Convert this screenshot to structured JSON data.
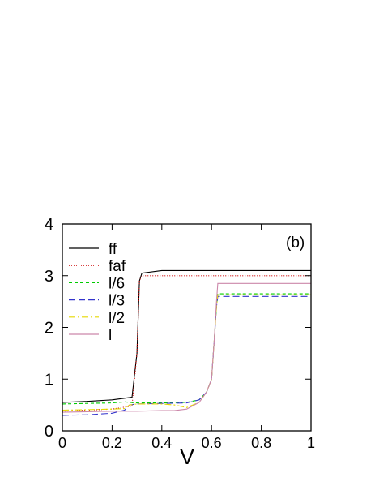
{
  "chart_data": {
    "type": "line",
    "panel_label": "(b)",
    "xlabel": "V",
    "ylabel": "",
    "xlim": [
      0,
      1
    ],
    "ylim": [
      0,
      4
    ],
    "x_ticks": [
      0,
      0.2,
      0.4,
      0.6,
      0.8,
      1
    ],
    "x_tick_labels": [
      "0",
      "0.2",
      "0.4",
      "0.6",
      "0.8",
      "1"
    ],
    "y_ticks": [
      0,
      1,
      2,
      3,
      4
    ],
    "y_tick_labels": [
      "0",
      "1",
      "2",
      "3",
      "4"
    ],
    "grid": false,
    "legend_position": "top-left",
    "series": [
      {
        "name": "ff",
        "color": "#000000",
        "dash": "",
        "x": [
          0,
          0.1,
          0.2,
          0.28,
          0.3,
          0.31,
          0.32,
          0.4,
          0.5,
          0.7,
          1.0
        ],
        "y": [
          0.55,
          0.57,
          0.6,
          0.65,
          1.5,
          2.9,
          3.05,
          3.1,
          3.1,
          3.1,
          3.1
        ]
      },
      {
        "name": "faf",
        "color": "#cc0000",
        "dash": "1,2",
        "x": [
          0,
          0.1,
          0.2,
          0.28,
          0.3,
          0.31,
          0.32,
          0.4,
          0.6,
          1.0
        ],
        "y": [
          0.38,
          0.4,
          0.42,
          0.48,
          1.5,
          2.9,
          3.0,
          3.0,
          3.0,
          3.0
        ]
      },
      {
        "name": "l/6",
        "color": "#00cc00",
        "dash": "4,3",
        "x": [
          0,
          0.1,
          0.2,
          0.25,
          0.27,
          0.3,
          0.4,
          0.5,
          0.55,
          0.58,
          0.6,
          0.61,
          0.62,
          0.625,
          0.7,
          1.0
        ],
        "y": [
          0.52,
          0.53,
          0.54,
          0.56,
          0.55,
          0.54,
          0.54,
          0.55,
          0.6,
          0.75,
          1.0,
          1.7,
          2.4,
          2.65,
          2.65,
          2.65
        ]
      },
      {
        "name": "l/3",
        "color": "#3333cc",
        "dash": "8,4",
        "x": [
          0,
          0.1,
          0.2,
          0.25,
          0.27,
          0.3,
          0.4,
          0.5,
          0.55,
          0.58,
          0.6,
          0.61,
          0.62,
          0.625,
          0.7,
          1.0
        ],
        "y": [
          0.3,
          0.31,
          0.34,
          0.4,
          0.5,
          0.52,
          0.53,
          0.54,
          0.6,
          0.75,
          1.0,
          1.7,
          2.4,
          2.6,
          2.6,
          2.6
        ]
      },
      {
        "name": "l/2",
        "color": "#e6d800",
        "dash": "8,3,2,3",
        "x": [
          0,
          0.1,
          0.2,
          0.25,
          0.27,
          0.3,
          0.4,
          0.45,
          0.5,
          0.55,
          0.58,
          0.6,
          0.61,
          0.62,
          0.625,
          0.7,
          1.0
        ],
        "y": [
          0.4,
          0.41,
          0.42,
          0.43,
          0.5,
          0.52,
          0.52,
          0.5,
          0.45,
          0.55,
          0.75,
          1.0,
          1.7,
          2.4,
          2.63,
          2.63,
          2.63
        ]
      },
      {
        "name": "l",
        "color": "#cc88aa",
        "dash": "",
        "x": [
          0,
          0.1,
          0.2,
          0.3,
          0.4,
          0.45,
          0.5,
          0.55,
          0.58,
          0.6,
          0.61,
          0.62,
          0.625,
          0.7,
          1.0
        ],
        "y": [
          0.36,
          0.37,
          0.38,
          0.38,
          0.39,
          0.39,
          0.42,
          0.55,
          0.75,
          1.0,
          1.7,
          2.5,
          2.85,
          2.85,
          2.85
        ]
      }
    ]
  }
}
